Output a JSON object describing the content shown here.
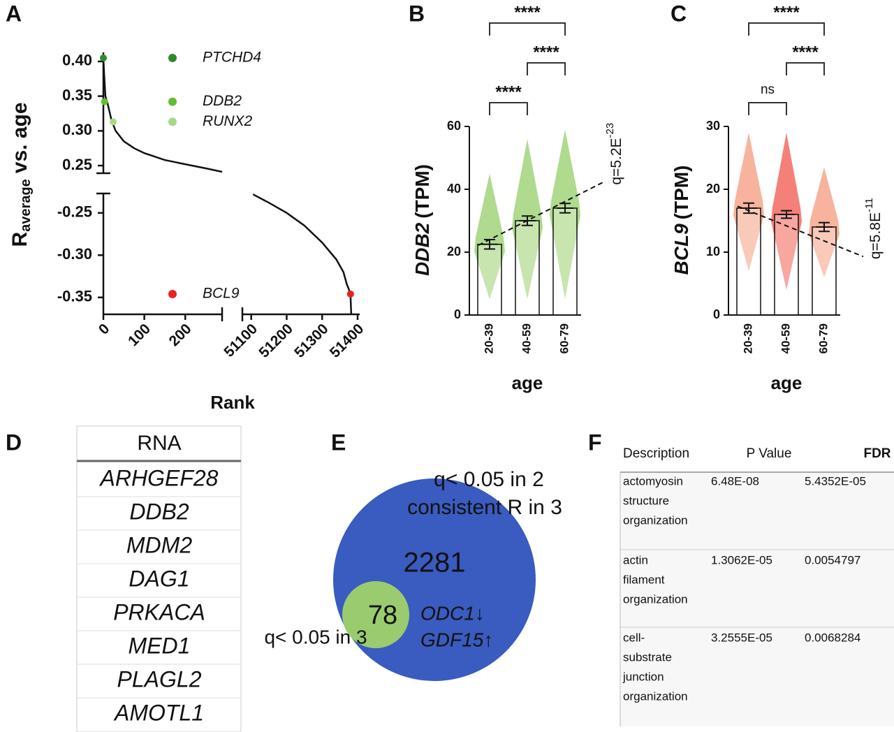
{
  "chart_data": [
    {
      "type": "broken-line",
      "label": "A",
      "ylabel_main": "R",
      "ylabel_sub": "average",
      "ylabel_rest": "vs. age",
      "xlabel": "Rank",
      "x_ranges": [
        {
          "xlim": [
            0,
            290
          ],
          "xticks": [
            0,
            100,
            200
          ]
        },
        {
          "xlim": [
            51075,
            51400
          ],
          "xticks": [
            51100,
            51200,
            51300,
            51400
          ]
        }
      ],
      "y_ranges": [
        {
          "ylim": [
            0.239,
            0.413
          ],
          "yticks": [
            {
              "value": 0.25,
              "label": "0.25"
            },
            {
              "value": 0.3,
              "label": "0.30"
            },
            {
              "value": 0.35,
              "label": "0.35"
            },
            {
              "value": 0.4,
              "label": "0.40"
            }
          ]
        },
        {
          "ylim": [
            -0.37,
            -0.227
          ],
          "yticks": [
            {
              "value": -0.35,
              "label": "-0.35"
            },
            {
              "value": -0.3,
              "label": "-0.30"
            },
            {
              "value": -0.25,
              "label": "-0.25"
            }
          ]
        }
      ],
      "x": [
        0,
        2,
        5,
        10,
        20,
        30,
        50,
        75,
        100,
        150,
        200,
        250,
        290,
        51000,
        51105,
        51150,
        51200,
        51250,
        51300,
        51340,
        51360,
        51370,
        51375,
        51380,
        51382
      ],
      "values": [
        0.405,
        0.38,
        0.35,
        0.34,
        0.315,
        0.3,
        0.285,
        0.275,
        0.268,
        0.258,
        0.252,
        0.246,
        0.241,
        null,
        -0.228,
        -0.238,
        -0.25,
        -0.265,
        -0.285,
        -0.305,
        -0.32,
        -0.335,
        -0.34,
        -0.347,
        -0.37
      ],
      "color": "#111111",
      "highlights": [
        {
          "label": "PTCHD4",
          "x": 0,
          "value": 0.405,
          "color": "#2e8b2e"
        },
        {
          "label": "DDB2",
          "x": 3,
          "value": 0.342,
          "color": "#66bb33"
        },
        {
          "label": "RUNX2",
          "x": 24,
          "value": 0.313,
          "color": "#a8d88a"
        },
        {
          "label": "BCL9",
          "x": 51380,
          "value": -0.346,
          "color": "#e8231f"
        }
      ]
    },
    {
      "type": "bar",
      "label": "B",
      "ylabel_gene": "DDB2",
      "ylabel_unit": "(TPM)",
      "xlabel": "age",
      "categories": [
        "20-39",
        "40-59",
        "60-79"
      ],
      "values": [
        22.5,
        30,
        34
      ],
      "errors": [
        1.5,
        1.5,
        1.5
      ],
      "point_ranges": [
        [
          5,
          45
        ],
        [
          5,
          56
        ],
        [
          5,
          59
        ]
      ],
      "colors": [
        "#7cc242",
        "#7cc242",
        "#7cc242"
      ],
      "ylim": [
        0,
        60
      ],
      "yticks": [
        0,
        20,
        40,
        60
      ],
      "trend": [
        22.2,
        42.4
      ],
      "q_label": "q=5.2E",
      "q_exponent": "-23",
      "comparisons": [
        {
          "groups": [
            "20-39",
            "60-79"
          ],
          "label": "****"
        },
        {
          "groups": [
            "40-59",
            "60-79"
          ],
          "label": "****"
        },
        {
          "groups": [
            "20-39",
            "40-59"
          ],
          "label": "****"
        }
      ]
    },
    {
      "type": "bar",
      "label": "C",
      "ylabel_gene": "BCL9",
      "ylabel_unit": "(TPM)",
      "xlabel": "age",
      "categories": [
        "20-39",
        "40-59",
        "60-79"
      ],
      "values": [
        17,
        16,
        14
      ],
      "errors": [
        0.8,
        0.6,
        0.7
      ],
      "point_ranges": [
        [
          7,
          29
        ],
        [
          4,
          29
        ],
        [
          6,
          23.5
        ]
      ],
      "colors": [
        "#f2805c",
        "#ee2b1c",
        "#f2805c"
      ],
      "ylim": [
        0,
        30
      ],
      "yticks": [
        0,
        10,
        20,
        30
      ],
      "trend": [
        17.3,
        9.3
      ],
      "q_label": "q=5.8E",
      "q_exponent": "-11",
      "comparisons": [
        {
          "groups": [
            "20-39",
            "60-79"
          ],
          "label": "****"
        },
        {
          "groups": [
            "40-59",
            "60-79"
          ],
          "label": "****"
        },
        {
          "groups": [
            "20-39",
            "40-59"
          ],
          "label": "ns"
        }
      ]
    }
  ],
  "table_d": {
    "label": "D",
    "header": "RNA",
    "rows": [
      {
        "text": "ARHGEF28",
        "color": "#e8231f"
      },
      {
        "text": "DDB2",
        "color": "#e8231f"
      },
      {
        "text": "MDM2",
        "color": "#e8231f"
      },
      {
        "text": "DAG1",
        "color": "#1a7dc8"
      },
      {
        "text": "PRKACA",
        "color": "#1a7dc8"
      },
      {
        "text": "MED1",
        "color": "#1a7dc8"
      },
      {
        "text": "PLAGL2",
        "color": "#1a7dc8"
      },
      {
        "text": "AMOTL1",
        "color": "#1a7dc8"
      }
    ]
  },
  "venn_e": {
    "label": "E",
    "outer_text": [
      "q< 0.05 in 2",
      "consistent R in 3"
    ],
    "outer_count": 2281,
    "inner_text": "q< 0.05 in 3",
    "inner_count": 78,
    "genes": [
      "ODC1↓",
      "GDF15↑"
    ]
  },
  "table_f": {
    "label": "F",
    "columns": [
      "Description",
      "P Value",
      "FDR"
    ],
    "rows": [
      {
        "description": [
          "actomyosin",
          "structure",
          "organization"
        ],
        "p_value": "6.48E-08",
        "fdr": "5.4352E-05"
      },
      {
        "description": [
          "actin",
          "filament",
          "organization"
        ],
        "p_value": "1.3062E-05",
        "fdr": "0.0054797"
      },
      {
        "description": [
          "cell-",
          "substrate",
          "junction",
          "organization"
        ],
        "p_value": "3.2555E-05",
        "fdr": "0.0068284"
      }
    ]
  }
}
